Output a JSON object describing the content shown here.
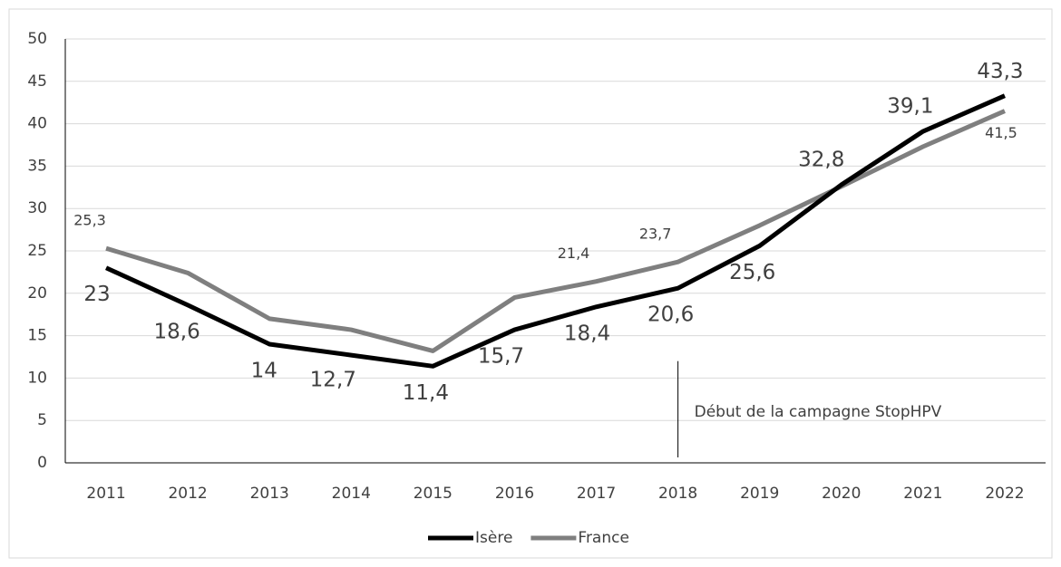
{
  "chart_data": {
    "type": "line",
    "categories": [
      "2011",
      "2012",
      "2013",
      "2014",
      "2015",
      "2016",
      "2017",
      "2018",
      "2019",
      "2020",
      "2021",
      "2022"
    ],
    "series": [
      {
        "name": "Isère",
        "color": "#000000",
        "values": [
          23,
          18.6,
          14,
          12.7,
          11.4,
          15.7,
          18.4,
          20.6,
          25.6,
          32.8,
          39.1,
          43.3
        ],
        "value_labels": [
          "23",
          "18,6",
          "14",
          "12,7",
          "11,4",
          "15,7",
          "18,4",
          "20,6",
          "25,6",
          "32,8",
          "39,1",
          "43,3"
        ]
      },
      {
        "name": "France",
        "color": "#7f7f7f",
        "values": [
          25.3,
          22.4,
          17,
          15.7,
          13.2,
          19.5,
          21.4,
          23.7,
          28,
          32.6,
          37.3,
          41.5
        ],
        "value_labels": [
          "25,3",
          null,
          null,
          null,
          null,
          null,
          "21,4",
          "23,7",
          null,
          null,
          null,
          "41,5"
        ]
      }
    ],
    "ylim": [
      0,
      50
    ],
    "yticks": [
      0,
      5,
      10,
      15,
      20,
      25,
      30,
      35,
      40,
      45,
      50
    ],
    "grid": true,
    "annotation": {
      "text": "Début de la campagne StopHPV",
      "x": "2018"
    },
    "legend": "bottom"
  }
}
